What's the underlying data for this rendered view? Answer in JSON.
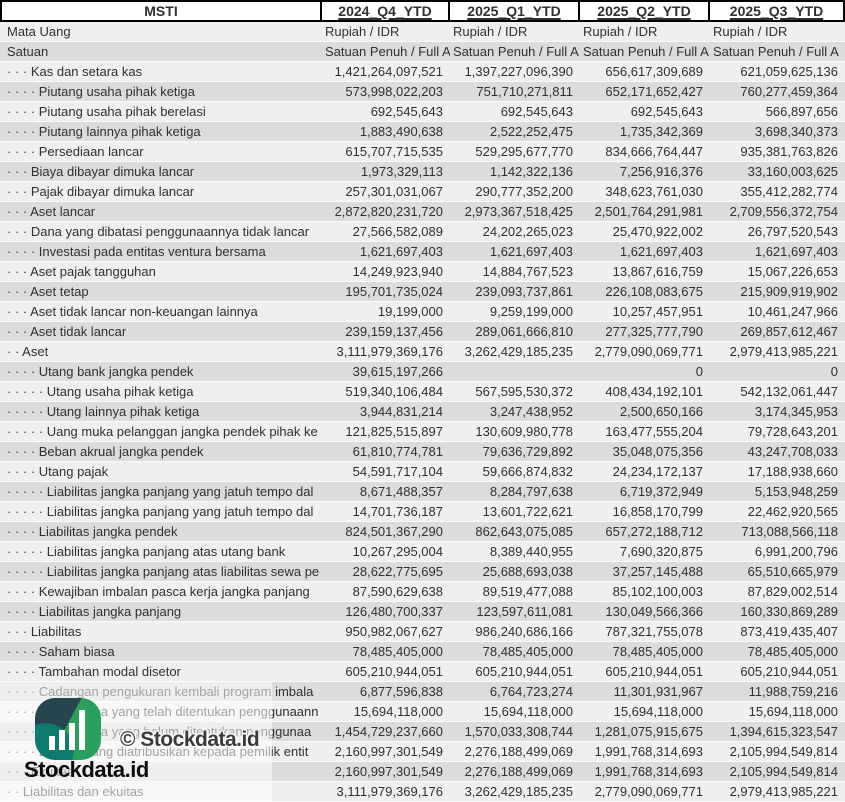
{
  "company": "MSTI",
  "quarter_columns": [
    "2024_Q4_YTD",
    "2025_Q1_YTD",
    "2025_Q2_YTD",
    "2025_Q3_YTD"
  ],
  "meta_rows": [
    {
      "label": "Mata Uang",
      "values": [
        "Rupiah / IDR",
        "Rupiah / IDR",
        "Rupiah / IDR",
        "Rupiah / IDR"
      ]
    },
    {
      "label": "Satuan",
      "values": [
        "Satuan Penuh / Full A",
        "Satuan Penuh / Full A",
        "Satuan Penuh / Full A",
        "Satuan Penuh / Full A"
      ]
    }
  ],
  "rows": [
    {
      "label": "· · · Kas dan setara kas",
      "values": [
        "1,421,264,097,521",
        "1,397,227,096,390",
        "656,617,309,689",
        "621,059,625,136"
      ]
    },
    {
      "label": "· · · · Piutang usaha pihak ketiga",
      "values": [
        "573,998,022,203",
        "751,710,271,811",
        "652,171,652,427",
        "760,277,459,364"
      ]
    },
    {
      "label": "· · · · Piutang usaha pihak berelasi",
      "values": [
        "692,545,643",
        "692,545,643",
        "692,545,643",
        "566,897,656"
      ]
    },
    {
      "label": "· · · · Piutang lainnya pihak ketiga",
      "values": [
        "1,883,490,638",
        "2,522,252,475",
        "1,735,342,369",
        "3,698,340,373"
      ]
    },
    {
      "label": "· · · · Persediaan lancar",
      "values": [
        "615,707,715,535",
        "529,295,677,770",
        "834,666,764,447",
        "935,381,763,826"
      ]
    },
    {
      "label": "· · · Biaya dibayar dimuka lancar",
      "values": [
        "1,973,329,113",
        "1,142,322,136",
        "7,256,916,376",
        "33,160,003,625"
      ]
    },
    {
      "label": "· · · Pajak dibayar dimuka lancar",
      "values": [
        "257,301,031,067",
        "290,777,352,200",
        "348,623,761,030",
        "355,412,282,774"
      ]
    },
    {
      "label": "· · · Aset lancar",
      "values": [
        "2,872,820,231,720",
        "2,973,367,518,425",
        "2,501,764,291,981",
        "2,709,556,372,754"
      ]
    },
    {
      "label": "· · · Dana yang dibatasi penggunaannya tidak lancar",
      "values": [
        "27,566,582,089",
        "24,202,265,023",
        "25,470,922,002",
        "26,797,520,543"
      ]
    },
    {
      "label": "· · · · Investasi pada entitas ventura bersama",
      "values": [
        "1,621,697,403",
        "1,621,697,403",
        "1,621,697,403",
        "1,621,697,403"
      ]
    },
    {
      "label": "· · · Aset pajak tangguhan",
      "values": [
        "14,249,923,940",
        "14,884,767,523",
        "13,867,616,759",
        "15,067,226,653"
      ]
    },
    {
      "label": "· · · Aset tetap",
      "values": [
        "195,701,735,024",
        "239,093,737,861",
        "226,108,083,675",
        "215,909,919,902"
      ]
    },
    {
      "label": "· · · Aset tidak lancar non-keuangan lainnya",
      "values": [
        "19,199,000",
        "9,259,199,000",
        "10,257,457,951",
        "10,461,247,966"
      ]
    },
    {
      "label": "· · · Aset tidak lancar",
      "values": [
        "239,159,137,456",
        "289,061,666,810",
        "277,325,777,790",
        "269,857,612,467"
      ]
    },
    {
      "label": "· · Aset",
      "values": [
        "3,111,979,369,176",
        "3,262,429,185,235",
        "2,779,090,069,771",
        "2,979,413,985,221"
      ]
    },
    {
      "label": "· · · · Utang bank jangka pendek",
      "values": [
        "39,615,197,266",
        "",
        "0",
        "0"
      ]
    },
    {
      "label": "· · · · · Utang usaha pihak ketiga",
      "values": [
        "519,340,106,484",
        "567,595,530,372",
        "408,434,192,101",
        "542,132,061,447"
      ]
    },
    {
      "label": "· · · · · Utang lainnya pihak ketiga",
      "values": [
        "3,944,831,214",
        "3,247,438,952",
        "2,500,650,166",
        "3,174,345,953"
      ]
    },
    {
      "label": "· · · · · Uang muka pelanggan jangka pendek pihak ke",
      "values": [
        "121,825,515,897",
        "130,609,980,778",
        "163,477,555,204",
        "79,728,643,201"
      ]
    },
    {
      "label": "· · · · Beban akrual jangka pendek",
      "values": [
        "61,810,774,781",
        "79,636,729,892",
        "35,048,075,356",
        "43,247,708,033"
      ]
    },
    {
      "label": "· · · · Utang pajak",
      "values": [
        "54,591,717,104",
        "59,666,874,832",
        "24,234,172,137",
        "17,188,938,660"
      ]
    },
    {
      "label": "· · · · · Liabilitas jangka panjang yang jatuh tempo dal",
      "values": [
        "8,671,488,357",
        "8,284,797,638",
        "6,719,372,949",
        "5,153,948,259"
      ]
    },
    {
      "label": "· · · · · Liabilitas jangka panjang yang jatuh tempo dal",
      "values": [
        "14,701,736,187",
        "13,601,722,621",
        "16,858,170,799",
        "22,462,920,565"
      ]
    },
    {
      "label": "· · · · Liabilitas jangka pendek",
      "values": [
        "824,501,367,290",
        "862,643,075,085",
        "657,272,188,712",
        "713,088,566,118"
      ]
    },
    {
      "label": "· · · · · Liabilitas jangka panjang atas utang bank",
      "values": [
        "10,267,295,004",
        "8,389,440,955",
        "7,690,320,875",
        "6,991,200,796"
      ]
    },
    {
      "label": "· · · · · Liabilitas jangka panjang atas liabilitas sewa pe",
      "values": [
        "28,622,775,695",
        "25,688,693,038",
        "37,257,145,488",
        "65,510,665,979"
      ]
    },
    {
      "label": "· · · · Kewajiban imbalan pasca kerja jangka panjang",
      "values": [
        "87,590,629,638",
        "89,519,477,088",
        "85,102,100,003",
        "87,829,002,514"
      ]
    },
    {
      "label": "· · · · Liabilitas jangka panjang",
      "values": [
        "126,480,700,337",
        "123,597,611,081",
        "130,049,566,366",
        "160,330,869,289"
      ]
    },
    {
      "label": "· · · Liabilitas",
      "values": [
        "950,982,067,627",
        "986,240,686,166",
        "787,321,755,078",
        "873,419,435,407"
      ]
    },
    {
      "label": "· · · · Saham biasa",
      "values": [
        "78,485,405,000",
        "78,485,405,000",
        "78,485,405,000",
        "78,485,405,000"
      ]
    },
    {
      "label": "· · · · Tambahan modal disetor",
      "values": [
        "605,210,944,051",
        "605,210,944,051",
        "605,210,944,051",
        "605,210,944,051"
      ]
    },
    {
      "label": "· · · · Cadangan pengukuran kembali program imbala",
      "values": [
        "6,877,596,838",
        "6,764,723,274",
        "11,301,931,967",
        "11,988,759,216"
      ]
    },
    {
      "label": "· · · · · Saldo laba yang telah ditentukan penggunaann",
      "values": [
        "15,694,118,000",
        "15,694,118,000",
        "15,694,118,000",
        "15,694,118,000"
      ]
    },
    {
      "label": "· · · · · Saldo laba yang belum ditentukan penggunaa",
      "values": [
        "1,454,729,237,660",
        "1,570,033,308,744",
        "1,281,075,915,675",
        "1,394,615,323,547"
      ]
    },
    {
      "label": "· · · · Ekuitas yang diatribusikan kepada pemilik entit",
      "values": [
        "2,160,997,301,549",
        "2,276,188,499,069",
        "1,991,768,314,693",
        "2,105,994,549,814"
      ]
    },
    {
      "label": "· · · Ekuitas",
      "values": [
        "2,160,997,301,549",
        "2,276,188,499,069",
        "1,991,768,314,693",
        "2,105,994,549,814"
      ]
    },
    {
      "label": "· · Liabilitas dan ekuitas",
      "values": [
        "3,111,979,369,176",
        "3,262,429,185,235",
        "2,779,090,069,771",
        "2,979,413,985,221"
      ]
    }
  ],
  "watermark": {
    "copyright": "© Stockdata.id",
    "brand": "Stockdata.id",
    "logo_icon": "stockdata-bar-chart-icon"
  },
  "colors": {
    "row_light": "#efefef",
    "row_dark": "#dcdcdc",
    "header_bg": "#ffffff",
    "header_border": "#000000",
    "text": "#303030",
    "watermark_dark_teal": "#27454f",
    "watermark_teal": "#0d7b6e",
    "watermark_green": "#2aa05c"
  }
}
